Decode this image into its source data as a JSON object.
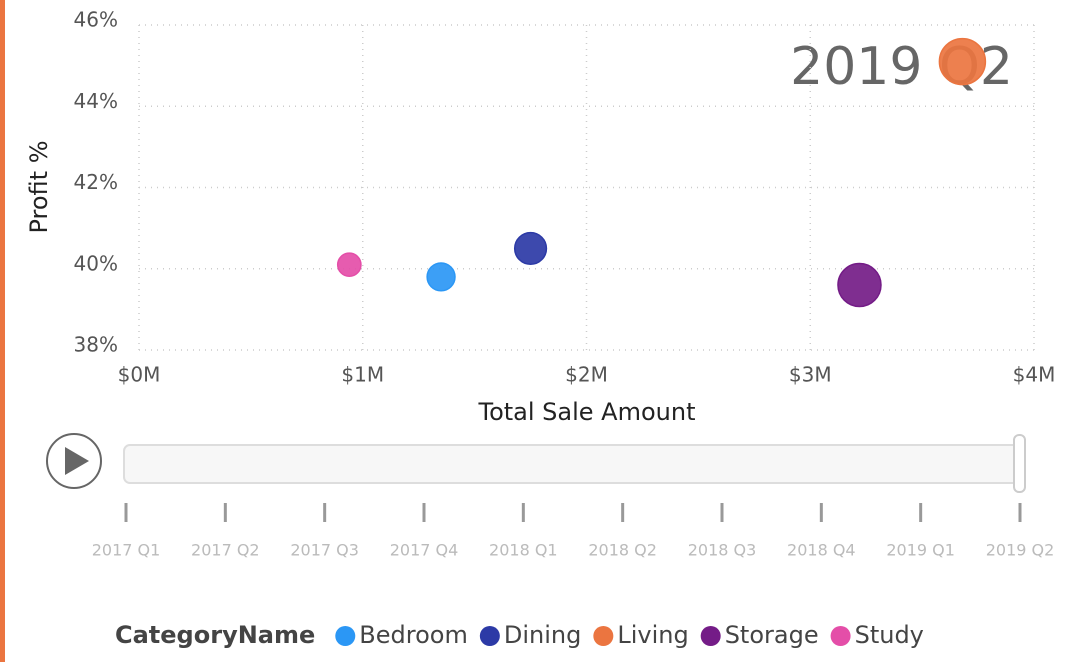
{
  "chart_data": {
    "type": "scatter",
    "x_label": "Total Sale Amount",
    "y_label": "Profit %",
    "xlim": [
      0,
      4000000
    ],
    "xticks": [
      {
        "value": 0,
        "label": "$0M"
      },
      {
        "value": 1000000,
        "label": "$1M"
      },
      {
        "value": 2000000,
        "label": "$2M"
      },
      {
        "value": 3000000,
        "label": "$3M"
      },
      {
        "value": 4000000,
        "label": "$4M"
      }
    ],
    "ylim": [
      38,
      46
    ],
    "yticks": [
      {
        "value": 38,
        "label": "38%"
      },
      {
        "value": 40,
        "label": "40%"
      },
      {
        "value": 42,
        "label": "42%"
      },
      {
        "value": 44,
        "label": "44%"
      },
      {
        "value": 46,
        "label": "46%"
      }
    ],
    "grid": true,
    "legend_title": "CategoryName",
    "series": [
      {
        "name": "Bedroom",
        "color": "#2b97f5",
        "x": [
          1350000
        ],
        "values": [
          39.8
        ]
      },
      {
        "name": "Dining",
        "color": "#2c3aa6",
        "x": [
          1750000
        ],
        "values": [
          40.5
        ]
      },
      {
        "name": "Living",
        "color": "#eb7540",
        "x": [
          3680000
        ],
        "values": [
          45.1
        ]
      },
      {
        "name": "Storage",
        "color": "#741c87",
        "x": [
          3220000
        ],
        "values": [
          39.6
        ]
      },
      {
        "name": "Study",
        "color": "#e44ea8",
        "x": [
          940000
        ],
        "values": [
          40.1
        ]
      }
    ],
    "play_axis": {
      "labels": [
        "2017 Q1",
        "2017 Q2",
        "2017 Q3",
        "2017 Q4",
        "2018 Q1",
        "2018 Q2",
        "2018 Q3",
        "2018 Q4",
        "2019 Q1",
        "2019 Q2"
      ],
      "current": "2019 Q2"
    }
  }
}
